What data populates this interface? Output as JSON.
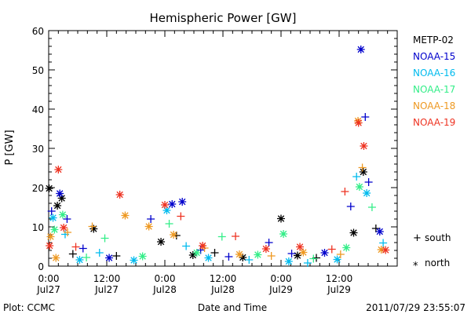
{
  "chart_data": {
    "type": "scatter",
    "title": "Hemispheric Power [GW]",
    "ylabel": "P [GW]",
    "xlabel": "Date and Time",
    "ylim": [
      0,
      60
    ],
    "yticks": [
      0,
      10,
      20,
      30,
      40,
      50,
      60
    ],
    "xlim_hours": [
      0,
      72
    ],
    "xticks": [
      {
        "hour": 0,
        "line1": "0:00",
        "line2": "Jul27"
      },
      {
        "hour": 12,
        "line1": "12:00",
        "line2": "Jul27"
      },
      {
        "hour": 24,
        "line1": "0:00",
        "line2": "Jul28"
      },
      {
        "hour": 36,
        "line1": "12:00",
        "line2": "Jul28"
      },
      {
        "hour": 48,
        "line1": "0:00",
        "line2": "Jul29"
      },
      {
        "hour": 60,
        "line1": "12:00",
        "line2": "Jul29"
      }
    ],
    "marker_legend": [
      {
        "marker": "+",
        "label": "south"
      },
      {
        "marker": "*",
        "label": "north"
      }
    ],
    "series": [
      {
        "name": "METP-02",
        "color": "#000000",
        "points": [
          {
            "x": 0.1,
            "y": 19.8,
            "m": "*"
          },
          {
            "x": 1.8,
            "y": 15.4,
            "m": "*"
          },
          {
            "x": 2.7,
            "y": 17.3,
            "m": "*"
          },
          {
            "x": 5.0,
            "y": 3.1,
            "m": "+"
          },
          {
            "x": 9.3,
            "y": 9.5,
            "m": "*"
          },
          {
            "x": 14.0,
            "y": 2.6,
            "m": "+"
          },
          {
            "x": 23.2,
            "y": 6.2,
            "m": "*"
          },
          {
            "x": 26.4,
            "y": 7.8,
            "m": "+"
          },
          {
            "x": 29.8,
            "y": 2.8,
            "m": "*"
          },
          {
            "x": 34.3,
            "y": 3.4,
            "m": "+"
          },
          {
            "x": 40.1,
            "y": 2.2,
            "m": "*"
          },
          {
            "x": 48.0,
            "y": 12.1,
            "m": "*"
          },
          {
            "x": 51.4,
            "y": 2.7,
            "m": "*"
          },
          {
            "x": 55.3,
            "y": 2.1,
            "m": "+"
          },
          {
            "x": 63.0,
            "y": 8.5,
            "m": "*"
          },
          {
            "x": 65.0,
            "y": 24.0,
            "m": "*"
          },
          {
            "x": 67.6,
            "y": 9.6,
            "m": "+"
          }
        ]
      },
      {
        "name": "NOAA-15",
        "color": "#0000cc",
        "points": [
          {
            "x": 0.6,
            "y": 14.0,
            "m": "+"
          },
          {
            "x": 2.3,
            "y": 18.5,
            "m": "*"
          },
          {
            "x": 3.8,
            "y": 12.0,
            "m": "+"
          },
          {
            "x": 7.1,
            "y": 4.5,
            "m": "+"
          },
          {
            "x": 12.5,
            "y": 2.1,
            "m": "*"
          },
          {
            "x": 21.1,
            "y": 12.0,
            "m": "+"
          },
          {
            "x": 25.5,
            "y": 15.8,
            "m": "*"
          },
          {
            "x": 27.6,
            "y": 16.4,
            "m": "*"
          },
          {
            "x": 31.4,
            "y": 4.1,
            "m": "+"
          },
          {
            "x": 37.2,
            "y": 2.4,
            "m": "+"
          },
          {
            "x": 45.5,
            "y": 6.0,
            "m": "+"
          },
          {
            "x": 50.2,
            "y": 3.2,
            "m": "+"
          },
          {
            "x": 57.0,
            "y": 3.4,
            "m": "*"
          },
          {
            "x": 62.4,
            "y": 15.2,
            "m": "+"
          },
          {
            "x": 64.5,
            "y": 55.2,
            "m": "*"
          },
          {
            "x": 65.4,
            "y": 38.0,
            "m": "+"
          },
          {
            "x": 66.1,
            "y": 21.4,
            "m": "+"
          },
          {
            "x": 68.4,
            "y": 8.8,
            "m": "*"
          }
        ]
      },
      {
        "name": "NOAA-16",
        "color": "#00bbee",
        "points": [
          {
            "x": 0.9,
            "y": 12.3,
            "m": "*"
          },
          {
            "x": 3.4,
            "y": 8.1,
            "m": "+"
          },
          {
            "x": 6.4,
            "y": 1.6,
            "m": "*"
          },
          {
            "x": 10.5,
            "y": 3.4,
            "m": "+"
          },
          {
            "x": 17.6,
            "y": 1.5,
            "m": "*"
          },
          {
            "x": 24.4,
            "y": 14.2,
            "m": "*"
          },
          {
            "x": 28.4,
            "y": 5.1,
            "m": "+"
          },
          {
            "x": 33.0,
            "y": 2.1,
            "m": "*"
          },
          {
            "x": 41.4,
            "y": 1.6,
            "m": "+"
          },
          {
            "x": 49.6,
            "y": 1.2,
            "m": "*"
          },
          {
            "x": 53.5,
            "y": 0.8,
            "m": "+"
          },
          {
            "x": 59.6,
            "y": 1.7,
            "m": "*"
          },
          {
            "x": 63.6,
            "y": 22.8,
            "m": "+"
          },
          {
            "x": 65.7,
            "y": 18.6,
            "m": "*"
          },
          {
            "x": 69.1,
            "y": 5.9,
            "m": "+"
          }
        ]
      },
      {
        "name": "NOAA-17",
        "color": "#33ee88",
        "points": [
          {
            "x": 1.2,
            "y": 9.3,
            "m": "*"
          },
          {
            "x": 2.9,
            "y": 13.1,
            "m": "*"
          },
          {
            "x": 7.8,
            "y": 2.2,
            "m": "+"
          },
          {
            "x": 11.6,
            "y": 7.1,
            "m": "+"
          },
          {
            "x": 19.4,
            "y": 2.5,
            "m": "*"
          },
          {
            "x": 24.9,
            "y": 10.8,
            "m": "+"
          },
          {
            "x": 30.6,
            "y": 3.4,
            "m": "*"
          },
          {
            "x": 35.8,
            "y": 7.5,
            "m": "+"
          },
          {
            "x": 43.2,
            "y": 2.9,
            "m": "*"
          },
          {
            "x": 48.5,
            "y": 8.2,
            "m": "*"
          },
          {
            "x": 54.7,
            "y": 1.9,
            "m": "+"
          },
          {
            "x": 61.5,
            "y": 4.7,
            "m": "*"
          },
          {
            "x": 64.2,
            "y": 20.2,
            "m": "*"
          },
          {
            "x": 66.8,
            "y": 15.0,
            "m": "+"
          }
        ]
      },
      {
        "name": "NOAA-18",
        "color": "#ee9922",
        "points": [
          {
            "x": 0.4,
            "y": 7.5,
            "m": "*"
          },
          {
            "x": 1.5,
            "y": 2.1,
            "m": "*"
          },
          {
            "x": 3.9,
            "y": 8.6,
            "m": "+"
          },
          {
            "x": 9.0,
            "y": 10.1,
            "m": "+"
          },
          {
            "x": 15.8,
            "y": 12.9,
            "m": "*"
          },
          {
            "x": 20.7,
            "y": 10.1,
            "m": "*"
          },
          {
            "x": 25.8,
            "y": 8.0,
            "m": "*"
          },
          {
            "x": 32.2,
            "y": 4.6,
            "m": "+"
          },
          {
            "x": 39.4,
            "y": 3.0,
            "m": "*"
          },
          {
            "x": 46.0,
            "y": 2.6,
            "m": "+"
          },
          {
            "x": 52.6,
            "y": 3.5,
            "m": "*"
          },
          {
            "x": 60.3,
            "y": 3.0,
            "m": "+"
          },
          {
            "x": 63.9,
            "y": 37.0,
            "m": "*"
          },
          {
            "x": 64.8,
            "y": 25.1,
            "m": "+"
          },
          {
            "x": 68.7,
            "y": 4.2,
            "m": "*"
          }
        ]
      },
      {
        "name": "NOAA-19",
        "color": "#ee3322",
        "points": [
          {
            "x": 0.2,
            "y": 5.2,
            "m": "*"
          },
          {
            "x": 2.0,
            "y": 24.6,
            "m": "*"
          },
          {
            "x": 3.1,
            "y": 9.8,
            "m": "*"
          },
          {
            "x": 5.6,
            "y": 4.9,
            "m": "+"
          },
          {
            "x": 14.7,
            "y": 18.2,
            "m": "*"
          },
          {
            "x": 24.0,
            "y": 15.6,
            "m": "*"
          },
          {
            "x": 27.3,
            "y": 12.7,
            "m": "+"
          },
          {
            "x": 31.8,
            "y": 5.2,
            "m": "*"
          },
          {
            "x": 38.6,
            "y": 7.6,
            "m": "+"
          },
          {
            "x": 44.9,
            "y": 4.4,
            "m": "*"
          },
          {
            "x": 51.9,
            "y": 4.9,
            "m": "*"
          },
          {
            "x": 58.5,
            "y": 4.3,
            "m": "+"
          },
          {
            "x": 61.2,
            "y": 19.0,
            "m": "+"
          },
          {
            "x": 64.0,
            "y": 36.5,
            "m": "*"
          },
          {
            "x": 65.1,
            "y": 30.6,
            "m": "*"
          },
          {
            "x": 69.6,
            "y": 4.1,
            "m": "*"
          }
        ]
      }
    ]
  },
  "footer": {
    "plot_credit": "Plot: CCMC",
    "timestamp": "2011/07/29 23:55:07"
  }
}
